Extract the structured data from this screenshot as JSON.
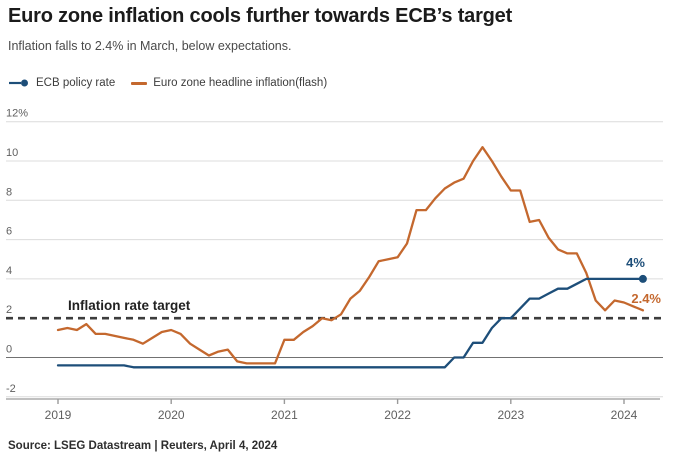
{
  "header": {
    "title": "Euro zone inflation cools further towards ECB’s target",
    "subtitle": "Inflation falls to 2.4% in March, below expectations."
  },
  "footer": {
    "source": "Source: LSEG Datastream | Reuters, April 4, 2024"
  },
  "colors": {
    "ecb_blue": "#1d4e79",
    "inflation_orange": "#c4682e",
    "target_dash": "#3d3d3d",
    "gridline": "#dcdcdc",
    "zero_line": "#717171",
    "axis": "#9a9a9a"
  },
  "chart_data": {
    "type": "line",
    "x_start": "2019-01",
    "x_end": "2024-03",
    "x_tick_labels": [
      "2019",
      "2020",
      "2021",
      "2022",
      "2023",
      "2024"
    ],
    "y_ticks": [
      {
        "value": -2,
        "label": "-2"
      },
      {
        "value": 0,
        "label": "0"
      },
      {
        "value": 2,
        "label": "2"
      },
      {
        "value": 4,
        "label": "4"
      },
      {
        "value": 6,
        "label": "6"
      },
      {
        "value": 8,
        "label": "8"
      },
      {
        "value": 10,
        "label": "10"
      },
      {
        "value": 12,
        "label": "12%"
      }
    ],
    "ylim": [
      -2,
      12
    ],
    "grid": true,
    "legend_position": "top-left",
    "target_line": {
      "value": 2,
      "label": "Inflation rate target"
    },
    "zero_line": true,
    "series": [
      {
        "name": "ECB policy rate",
        "color": "#1d4e79",
        "end_label": "4%",
        "end_marker": true,
        "monthly_values": [
          -0.4,
          -0.4,
          -0.4,
          -0.4,
          -0.4,
          -0.4,
          -0.4,
          -0.4,
          -0.5,
          -0.5,
          -0.5,
          -0.5,
          -0.5,
          -0.5,
          -0.5,
          -0.5,
          -0.5,
          -0.5,
          -0.5,
          -0.5,
          -0.5,
          -0.5,
          -0.5,
          -0.5,
          -0.5,
          -0.5,
          -0.5,
          -0.5,
          -0.5,
          -0.5,
          -0.5,
          -0.5,
          -0.5,
          -0.5,
          -0.5,
          -0.5,
          -0.5,
          -0.5,
          -0.5,
          -0.5,
          -0.5,
          -0.5,
          0,
          0,
          0.75,
          0.75,
          1.5,
          2.0,
          2.0,
          2.5,
          3.0,
          3.0,
          3.25,
          3.5,
          3.5,
          3.75,
          4.0,
          4.0,
          4.0,
          4.0,
          4.0,
          4.0,
          4.0
        ]
      },
      {
        "name": "Euro zone headline inflation(flash)",
        "color": "#c4682e",
        "end_label": "2.4%",
        "end_marker": false,
        "monthly_values": [
          1.4,
          1.5,
          1.4,
          1.7,
          1.2,
          1.2,
          1.1,
          1.0,
          0.9,
          0.7,
          1.0,
          1.3,
          1.4,
          1.2,
          0.7,
          0.4,
          0.1,
          0.3,
          0.4,
          -0.2,
          -0.3,
          -0.3,
          -0.3,
          -0.3,
          0.9,
          0.9,
          1.3,
          1.6,
          2.0,
          1.9,
          2.2,
          3.0,
          3.4,
          4.1,
          4.9,
          5.0,
          5.1,
          5.8,
          7.5,
          7.5,
          8.1,
          8.6,
          8.9,
          9.1,
          10.0,
          10.7,
          10.0,
          9.2,
          8.5,
          8.5,
          6.9,
          7.0,
          6.1,
          5.5,
          5.3,
          5.3,
          4.3,
          2.9,
          2.4,
          2.9,
          2.8,
          2.6,
          2.4
        ]
      }
    ]
  }
}
